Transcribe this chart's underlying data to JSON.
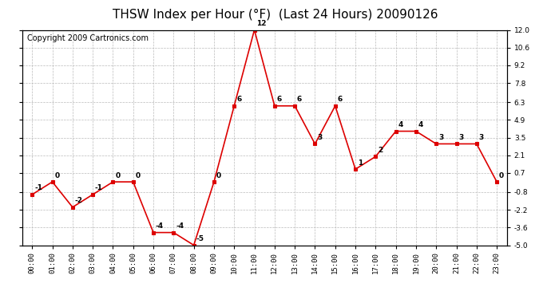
{
  "title": "THSW Index per Hour (°F)  (Last 24 Hours) 20090126",
  "copyright": "Copyright 2009 Cartronics.com",
  "hours": [
    "00:00",
    "01:00",
    "02:00",
    "03:00",
    "04:00",
    "05:00",
    "06:00",
    "07:00",
    "08:00",
    "09:00",
    "10:00",
    "11:00",
    "12:00",
    "13:00",
    "14:00",
    "15:00",
    "16:00",
    "17:00",
    "18:00",
    "19:00",
    "20:00",
    "21:00",
    "22:00",
    "23:00"
  ],
  "values": [
    -1,
    0,
    -2,
    -1,
    0,
    0,
    -4,
    -4,
    -5,
    0,
    6,
    12,
    6,
    6,
    3,
    6,
    1,
    2,
    4,
    4,
    3,
    3,
    3,
    0
  ],
  "line_color": "#dd0000",
  "marker_color": "#dd0000",
  "bg_color": "#ffffff",
  "grid_color": "#bbbbbb",
  "ylim": [
    -5.0,
    12.0
  ],
  "yticks": [
    -5.0,
    -3.6,
    -2.2,
    -0.8,
    0.7,
    2.1,
    3.5,
    4.9,
    6.3,
    7.8,
    9.2,
    10.6,
    12.0
  ],
  "ytick_labels": [
    "-5.0",
    "-3.6",
    "-2.2",
    "-0.8",
    "0.7",
    "2.1",
    "3.5",
    "4.9",
    "6.3",
    "7.8",
    "9.2",
    "10.6",
    "12.0"
  ],
  "title_fontsize": 11,
  "copyright_fontsize": 7,
  "label_fontsize": 6.5,
  "tick_fontsize": 6.5
}
